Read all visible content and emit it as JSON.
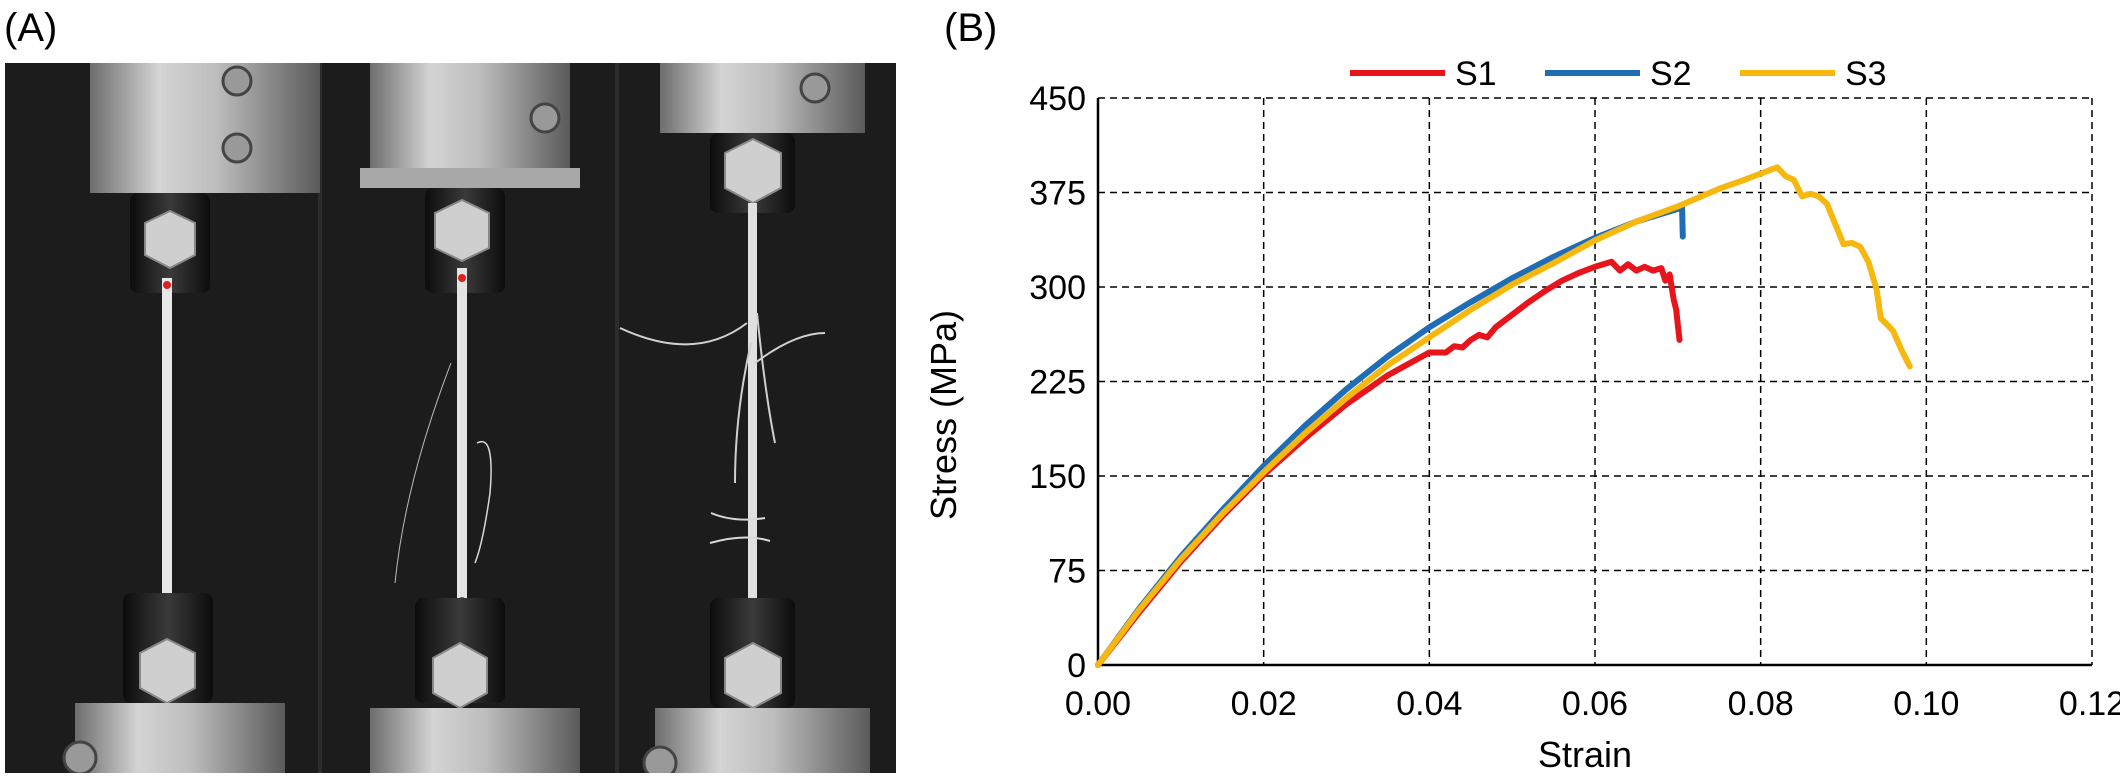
{
  "panels": {
    "a_label": "(A)",
    "b_label": "(B)"
  },
  "photo": {
    "description_icon": "tensile-specimens-photo"
  },
  "chart_data": {
    "type": "line",
    "xlabel": "Strain",
    "ylabel": "Stress (MPa)",
    "xlim": [
      0,
      0.12
    ],
    "ylim": [
      0,
      450
    ],
    "xticks": [
      "0.00",
      "0.02",
      "0.04",
      "0.06",
      "0.08",
      "0.10",
      "0.12"
    ],
    "yticks": [
      "0",
      "75",
      "150",
      "225",
      "300",
      "375",
      "450"
    ],
    "grid": true,
    "legend_position": "top",
    "series": [
      {
        "name": "S1",
        "color": "#e8141c",
        "x": [
          0,
          0.005,
          0.01,
          0.015,
          0.02,
          0.025,
          0.03,
          0.035,
          0.04,
          0.042,
          0.043,
          0.044,
          0.045,
          0.046,
          0.047,
          0.048,
          0.05,
          0.052,
          0.054,
          0.056,
          0.058,
          0.06,
          0.062,
          0.063,
          0.064,
          0.065,
          0.066,
          0.067,
          0.068,
          0.0685,
          0.069,
          0.0695,
          0.0698,
          0.07,
          0.0702
        ],
        "y": [
          0,
          42,
          82,
          118,
          151,
          180,
          207,
          230,
          248,
          248,
          253,
          252,
          258,
          262,
          260,
          268,
          278,
          288,
          297,
          305,
          311,
          316,
          320,
          313,
          318,
          313,
          316,
          313,
          315,
          305,
          310,
          290,
          282,
          270,
          258
        ]
      },
      {
        "name": "S2",
        "color": "#1f6eb5",
        "x": [
          0,
          0.005,
          0.01,
          0.015,
          0.02,
          0.025,
          0.03,
          0.035,
          0.04,
          0.045,
          0.05,
          0.055,
          0.06,
          0.065,
          0.07,
          0.0705,
          0.0706
        ],
        "y": [
          0,
          45,
          86,
          123,
          158,
          190,
          219,
          245,
          268,
          288,
          307,
          324,
          339,
          352,
          362,
          365,
          340
        ]
      },
      {
        "name": "S3",
        "color": "#f6b80f",
        "x": [
          0,
          0.005,
          0.01,
          0.015,
          0.02,
          0.025,
          0.03,
          0.035,
          0.04,
          0.045,
          0.05,
          0.055,
          0.06,
          0.065,
          0.07,
          0.075,
          0.078,
          0.08,
          0.082,
          0.083,
          0.084,
          0.085,
          0.086,
          0.087,
          0.088,
          0.089,
          0.09,
          0.091,
          0.092,
          0.093,
          0.094,
          0.0945,
          0.095,
          0.096,
          0.097,
          0.098
        ],
        "y": [
          0,
          44,
          84,
          120,
          153,
          184,
          212,
          238,
          260,
          282,
          302,
          319,
          337,
          352,
          364,
          378,
          385,
          390,
          395,
          388,
          385,
          372,
          374,
          372,
          366,
          350,
          334,
          335,
          332,
          320,
          298,
          275,
          272,
          265,
          250,
          237
        ]
      }
    ]
  }
}
